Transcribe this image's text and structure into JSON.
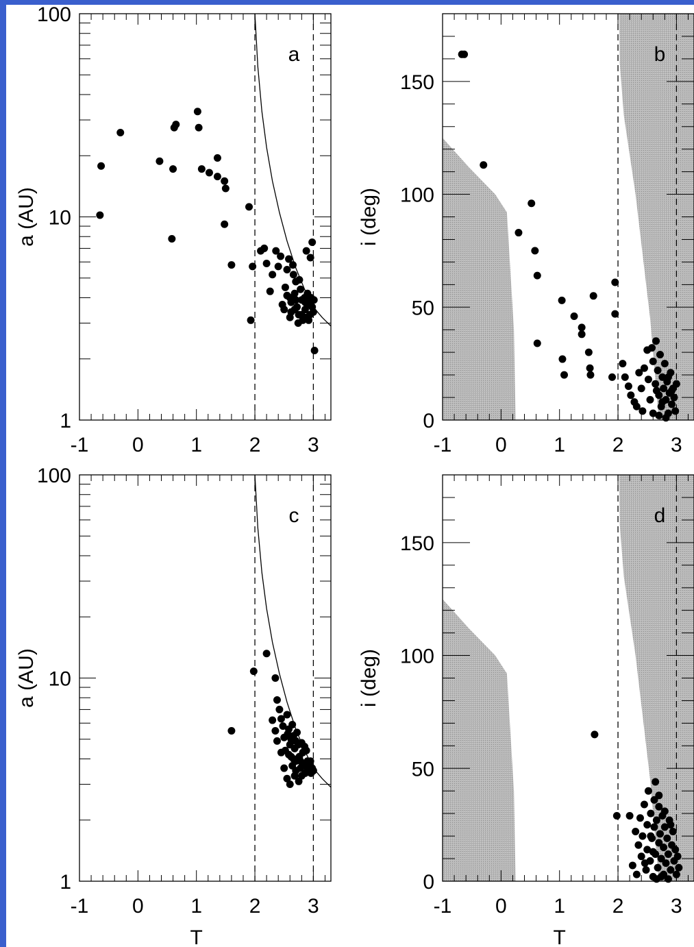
{
  "colors": {
    "shade": "#b9b9b9",
    "marker": "#000000",
    "page_edge": "#3a5fcd"
  },
  "chart_data": [
    {
      "panel": "a",
      "type": "scatter",
      "title": "",
      "xlabel": "T",
      "ylabel": "a (AU)",
      "yscale": "log",
      "xlim": [
        -1,
        3.3
      ],
      "ylim": [
        1,
        100
      ],
      "xticks": [
        "-1",
        "0",
        "1",
        "2",
        "3"
      ],
      "yticks": [
        "1",
        "10",
        "100"
      ],
      "guides": {
        "vlines_dashed": [
          2,
          3
        ],
        "curve": "solid curve from (2.0, 100) descending to (3.3, 2.9)"
      },
      "points": [
        [
          -0.65,
          10.2
        ],
        [
          -0.63,
          17.8
        ],
        [
          -0.3,
          26
        ],
        [
          0.37,
          18.8
        ],
        [
          0.58,
          7.8
        ],
        [
          0.6,
          17.2
        ],
        [
          0.62,
          27.5
        ],
        [
          0.65,
          28.5
        ],
        [
          1.02,
          33
        ],
        [
          1.04,
          27.5
        ],
        [
          1.09,
          17.2
        ],
        [
          1.22,
          16.5
        ],
        [
          1.36,
          19.5
        ],
        [
          1.36,
          15.8
        ],
        [
          1.48,
          15.0
        ],
        [
          1.5,
          13.8
        ],
        [
          1.48,
          9.2
        ],
        [
          1.6,
          5.8
        ],
        [
          1.9,
          11.2
        ],
        [
          1.93,
          3.1
        ],
        [
          1.96,
          5.7
        ],
        [
          2.1,
          6.8
        ],
        [
          2.2,
          5.9
        ],
        [
          2.16,
          7.0
        ],
        [
          2.26,
          4.3
        ],
        [
          2.3,
          5.2
        ],
        [
          2.36,
          6.8
        ],
        [
          2.4,
          5.7
        ],
        [
          2.44,
          6.4
        ],
        [
          2.52,
          4.5
        ],
        [
          2.47,
          3.7
        ],
        [
          2.55,
          5.5
        ],
        [
          2.6,
          4.0
        ],
        [
          2.62,
          3.4
        ],
        [
          2.58,
          6.2
        ],
        [
          2.65,
          5.8
        ],
        [
          2.7,
          4.8
        ],
        [
          2.68,
          4.2
        ],
        [
          2.72,
          3.6
        ],
        [
          2.75,
          3.3
        ],
        [
          2.78,
          4.4
        ],
        [
          2.8,
          3.9
        ],
        [
          2.82,
          3.1
        ],
        [
          2.85,
          4.0
        ],
        [
          2.86,
          3.5
        ],
        [
          2.88,
          3.2
        ],
        [
          2.9,
          4.2
        ],
        [
          2.92,
          3.7
        ],
        [
          2.94,
          3.3
        ],
        [
          2.96,
          4.0
        ],
        [
          2.98,
          3.6
        ],
        [
          3.0,
          3.4
        ],
        [
          3.01,
          3.9
        ],
        [
          2.95,
          6.3
        ],
        [
          2.98,
          7.5
        ],
        [
          2.88,
          6.8
        ],
        [
          3.02,
          2.2
        ],
        [
          2.7,
          3.9
        ],
        [
          2.74,
          3.0
        ],
        [
          2.62,
          3.8
        ],
        [
          2.55,
          4.1
        ],
        [
          2.86,
          3.8
        ],
        [
          2.66,
          5.2
        ],
        [
          2.6,
          3.2
        ],
        [
          2.76,
          4.9
        ],
        [
          2.5,
          3.5
        ],
        [
          2.92,
          3.1
        ],
        [
          2.8,
          3.3
        ],
        [
          2.96,
          3.8
        ],
        [
          2.68,
          3.5
        ]
      ]
    },
    {
      "panel": "b",
      "type": "scatter",
      "title": "",
      "xlabel": "T",
      "ylabel": "i (deg)",
      "xlim": [
        -1,
        3.3
      ],
      "ylim": [
        0,
        180
      ],
      "xticks": [
        "-1",
        "0",
        "1",
        "2",
        "3"
      ],
      "yticks": [
        "0",
        "50",
        "100",
        "150"
      ],
      "guides": {
        "vlines_dashed": [
          2,
          3
        ],
        "shaded": "grey hatched regions: T<0.25 below a boundary, and right region T>1.95"
      },
      "points": [
        [
          -0.67,
          162
        ],
        [
          -0.63,
          162
        ],
        [
          -0.3,
          113
        ],
        [
          0.3,
          83
        ],
        [
          0.52,
          96
        ],
        [
          0.58,
          75
        ],
        [
          0.62,
          64
        ],
        [
          0.62,
          34
        ],
        [
          1.04,
          53
        ],
        [
          1.05,
          27
        ],
        [
          1.08,
          20
        ],
        [
          1.25,
          46
        ],
        [
          1.38,
          41
        ],
        [
          1.38,
          38
        ],
        [
          1.5,
          30
        ],
        [
          1.52,
          23
        ],
        [
          1.53,
          20
        ],
        [
          1.58,
          55
        ],
        [
          1.9,
          19
        ],
        [
          1.95,
          61
        ],
        [
          1.95,
          47
        ],
        [
          2.08,
          25
        ],
        [
          2.12,
          19
        ],
        [
          2.18,
          15
        ],
        [
          2.22,
          11
        ],
        [
          2.28,
          8
        ],
        [
          2.32,
          6
        ],
        [
          2.36,
          21
        ],
        [
          2.4,
          14
        ],
        [
          2.42,
          4
        ],
        [
          2.45,
          23
        ],
        [
          2.5,
          31
        ],
        [
          2.52,
          18
        ],
        [
          2.55,
          9
        ],
        [
          2.58,
          32
        ],
        [
          2.6,
          26
        ],
        [
          2.6,
          3
        ],
        [
          2.64,
          16
        ],
        [
          2.65,
          35
        ],
        [
          2.68,
          22
        ],
        [
          2.7,
          11
        ],
        [
          2.72,
          29
        ],
        [
          2.74,
          6
        ],
        [
          2.76,
          19
        ],
        [
          2.78,
          14
        ],
        [
          2.8,
          25
        ],
        [
          2.82,
          9
        ],
        [
          2.84,
          17
        ],
        [
          2.86,
          3
        ],
        [
          2.88,
          12
        ],
        [
          2.9,
          21
        ],
        [
          2.92,
          7
        ],
        [
          2.94,
          14
        ],
        [
          2.96,
          10
        ],
        [
          2.98,
          4
        ],
        [
          3.0,
          16
        ],
        [
          2.7,
          2
        ],
        [
          2.82,
          1
        ],
        [
          2.66,
          13
        ],
        [
          2.76,
          8
        ],
        [
          2.86,
          19
        ],
        [
          2.92,
          13
        ]
      ]
    },
    {
      "panel": "c",
      "type": "scatter",
      "title": "",
      "xlabel": "T",
      "ylabel": "a (AU)",
      "yscale": "log",
      "xlim": [
        -1,
        3.3
      ],
      "ylim": [
        1,
        100
      ],
      "xticks": [
        "-1",
        "0",
        "1",
        "2",
        "3"
      ],
      "yticks": [
        "1",
        "10",
        "100"
      ],
      "guides": {
        "vlines_dashed": [
          2,
          3
        ],
        "curve": "solid curve from (2.0, 100) descending to (3.3, 2.9)"
      },
      "points": [
        [
          1.6,
          5.5
        ],
        [
          1.98,
          10.8
        ],
        [
          2.2,
          13.2
        ],
        [
          2.35,
          10.0
        ],
        [
          2.38,
          7.8
        ],
        [
          2.3,
          6.2
        ],
        [
          2.35,
          5.5
        ],
        [
          2.38,
          4.9
        ],
        [
          2.42,
          7.0
        ],
        [
          2.45,
          6.3
        ],
        [
          2.48,
          5.8
        ],
        [
          2.5,
          5.1
        ],
        [
          2.52,
          4.4
        ],
        [
          2.55,
          6.6
        ],
        [
          2.58,
          5.6
        ],
        [
          2.6,
          4.7
        ],
        [
          2.62,
          4.1
        ],
        [
          2.64,
          5.9
        ],
        [
          2.66,
          5.2
        ],
        [
          2.68,
          4.5
        ],
        [
          2.7,
          3.9
        ],
        [
          2.72,
          5.4
        ],
        [
          2.74,
          4.7
        ],
        [
          2.76,
          4.1
        ],
        [
          2.78,
          3.6
        ],
        [
          2.8,
          4.8
        ],
        [
          2.82,
          4.3
        ],
        [
          2.84,
          3.8
        ],
        [
          2.86,
          3.4
        ],
        [
          2.88,
          4.4
        ],
        [
          2.9,
          3.9
        ],
        [
          2.92,
          3.5
        ],
        [
          2.94,
          3.7
        ],
        [
          2.96,
          3.4
        ],
        [
          2.98,
          3.6
        ],
        [
          3.0,
          3.5
        ],
        [
          2.55,
          3.2
        ],
        [
          2.6,
          3.0
        ],
        [
          2.68,
          3.3
        ],
        [
          2.75,
          3.1
        ],
        [
          2.5,
          3.6
        ],
        [
          2.45,
          4.3
        ],
        [
          2.64,
          3.7
        ],
        [
          2.58,
          4.2
        ],
        [
          2.7,
          4.9
        ],
        [
          2.78,
          3.9
        ],
        [
          2.85,
          4.6
        ],
        [
          2.9,
          3.6
        ],
        [
          2.95,
          3.9
        ],
        [
          2.7,
          3.5
        ],
        [
          2.62,
          5.0
        ],
        [
          2.56,
          5.3
        ],
        [
          2.8,
          3.3
        ],
        [
          2.66,
          4.0
        ]
      ]
    },
    {
      "panel": "d",
      "type": "scatter",
      "title": "",
      "xlabel": "T",
      "ylabel": "i (deg)",
      "xlim": [
        -1,
        3.3
      ],
      "ylim": [
        0,
        180
      ],
      "xticks": [
        "-1",
        "0",
        "1",
        "2",
        "3"
      ],
      "yticks": [
        "0",
        "50",
        "100",
        "150"
      ],
      "guides": {
        "vlines_dashed": [
          2,
          3
        ],
        "shaded": "grey hatched regions: T<0.25 below a boundary, and right region T>1.95"
      },
      "points": [
        [
          1.6,
          65
        ],
        [
          1.98,
          29
        ],
        [
          2.2,
          29
        ],
        [
          2.25,
          7
        ],
        [
          2.3,
          22
        ],
        [
          2.32,
          3
        ],
        [
          2.35,
          16
        ],
        [
          2.38,
          28
        ],
        [
          2.4,
          11
        ],
        [
          2.42,
          20
        ],
        [
          2.45,
          34
        ],
        [
          2.48,
          5
        ],
        [
          2.5,
          25
        ],
        [
          2.5,
          14
        ],
        [
          2.52,
          40
        ],
        [
          2.55,
          9
        ],
        [
          2.56,
          30
        ],
        [
          2.58,
          19
        ],
        [
          2.6,
          2
        ],
        [
          2.62,
          36
        ],
        [
          2.62,
          24
        ],
        [
          2.64,
          12
        ],
        [
          2.66,
          27
        ],
        [
          2.68,
          6
        ],
        [
          2.7,
          33
        ],
        [
          2.7,
          17
        ],
        [
          2.72,
          21
        ],
        [
          2.74,
          10
        ],
        [
          2.76,
          29
        ],
        [
          2.78,
          3
        ],
        [
          2.78,
          15
        ],
        [
          2.8,
          24
        ],
        [
          2.82,
          8
        ],
        [
          2.84,
          19
        ],
        [
          2.86,
          12
        ],
        [
          2.88,
          27
        ],
        [
          2.9,
          5
        ],
        [
          2.92,
          16
        ],
        [
          2.94,
          22
        ],
        [
          2.96,
          9
        ],
        [
          2.98,
          14
        ],
        [
          3.0,
          3
        ],
        [
          3.02,
          11
        ],
        [
          3.04,
          6
        ],
        [
          2.66,
          1
        ],
        [
          2.74,
          2
        ],
        [
          2.86,
          1
        ],
        [
          2.56,
          20
        ],
        [
          2.64,
          44
        ],
        [
          2.7,
          38
        ],
        [
          2.8,
          31
        ],
        [
          2.9,
          25
        ],
        [
          2.46,
          8
        ],
        [
          2.6,
          13
        ]
      ]
    }
  ]
}
